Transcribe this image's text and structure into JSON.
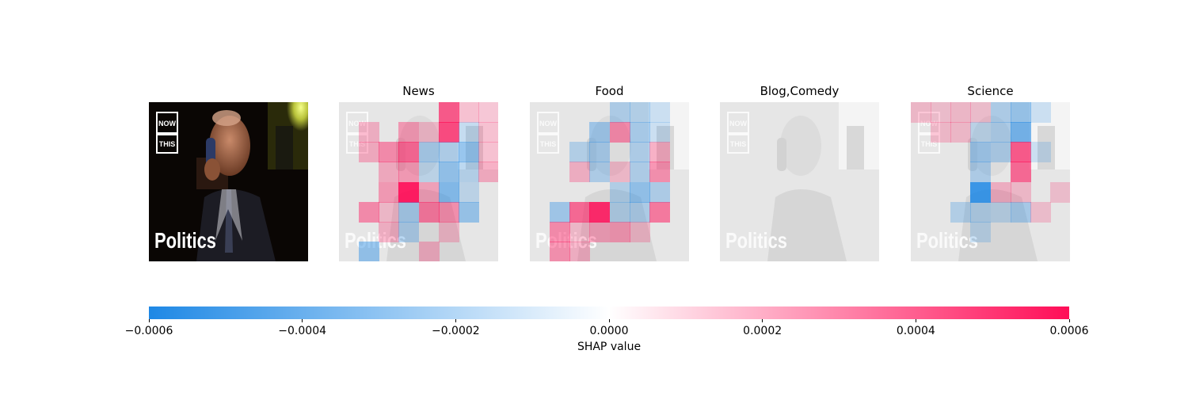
{
  "chart_data": {
    "type": "heatmap",
    "title": "",
    "panels": [
      {
        "title": "",
        "kind": "original-image"
      },
      {
        "title": "News"
      },
      {
        "title": "Food"
      },
      {
        "title": "Blog,Comedy"
      },
      {
        "title": "Science"
      }
    ],
    "image_overlay_text": [
      "NOW",
      "THIS",
      "Politics"
    ],
    "grid": {
      "rows": 8,
      "cols": 8
    },
    "shap_values": {
      "News": [
        [
          0,
          0,
          0,
          0,
          0,
          0.00035,
          5e-05,
          3e-05
        ],
        [
          0,
          8e-05,
          0,
          0.00015,
          5e-05,
          0.0004,
          -5e-05,
          5e-05
        ],
        [
          0,
          0.0001,
          0.0002,
          0.0003,
          -0.00012,
          -0.0001,
          -0.0002,
          5e-05
        ],
        [
          0,
          0,
          0.0001,
          0.00015,
          -5e-05,
          -0.0002,
          -8e-05,
          0.0001
        ],
        [
          0,
          0,
          0.00015,
          0.00055,
          0.00012,
          -0.00025,
          -5e-05,
          0
        ],
        [
          0,
          0.0002,
          5e-05,
          -0.00012,
          0.00025,
          0.00018,
          -0.00018,
          0
        ],
        [
          0,
          0,
          8e-05,
          -0.0001,
          0,
          5e-05,
          0,
          0
        ],
        [
          0,
          -0.0002,
          0,
          0,
          8e-05,
          0,
          0,
          0
        ]
      ],
      "Food": [
        [
          0,
          0,
          0,
          0,
          -0.0001,
          -8e-05,
          -3e-05,
          0
        ],
        [
          0,
          0,
          0,
          -0.00015,
          0.0002,
          -0.00012,
          -3e-05,
          0
        ],
        [
          0,
          0,
          -8e-05,
          -0.00012,
          0,
          -0.0001,
          0.0001,
          0
        ],
        [
          0,
          0,
          8e-05,
          -0.0001,
          5e-05,
          -0.0001,
          0.00018,
          0
        ],
        [
          0,
          0,
          0,
          0,
          -8e-05,
          -0.0002,
          -0.0001,
          0
        ],
        [
          0,
          -0.00015,
          0.0003,
          0.0005,
          -8e-05,
          -0.0001,
          0.00025,
          0
        ],
        [
          0,
          0.0002,
          5e-05,
          0.00012,
          0.00015,
          5e-05,
          0,
          0
        ],
        [
          0,
          0.00018,
          8e-05,
          0,
          0,
          0,
          0,
          0
        ]
      ],
      "Blog,Comedy": [
        [
          0,
          0,
          0,
          0,
          0,
          0,
          0,
          0
        ],
        [
          0,
          0,
          0,
          0,
          0,
          0,
          0,
          0
        ],
        [
          0,
          0,
          0,
          0,
          0,
          0,
          0,
          0
        ],
        [
          0,
          0,
          0,
          0,
          0,
          0,
          0,
          0
        ],
        [
          0,
          0,
          0,
          0,
          0,
          0,
          0,
          0
        ],
        [
          0,
          0,
          0,
          0,
          0,
          0,
          0,
          0
        ],
        [
          0,
          0,
          0,
          0,
          0,
          0,
          0,
          0
        ],
        [
          0,
          0,
          0,
          0,
          0,
          0,
          0,
          0
        ]
      ],
      "Science": [
        [
          5e-05,
          3e-05,
          5e-05,
          3e-05,
          -0.0001,
          -0.00018,
          -3e-05,
          0
        ],
        [
          0,
          5e-05,
          5e-05,
          -5e-05,
          -0.0001,
          -0.0003,
          0,
          0
        ],
        [
          0,
          0,
          0,
          -0.00015,
          -0.0001,
          0.00035,
          -3e-05,
          0
        ],
        [
          0,
          0,
          0,
          -0.0001,
          0,
          0.0003,
          0,
          0
        ],
        [
          0,
          0,
          0,
          -0.0005,
          8e-05,
          5e-05,
          0,
          3e-05
        ],
        [
          0,
          0,
          -8e-05,
          -8e-05,
          -5e-05,
          -0.00012,
          3e-05,
          0
        ],
        [
          0,
          0,
          0,
          -5e-05,
          0,
          0,
          0,
          0
        ],
        [
          0,
          0,
          0,
          0,
          0,
          0,
          0,
          0
        ]
      ]
    },
    "colorbar": {
      "label": "SHAP value",
      "range": [
        -0.0006,
        0.0006
      ],
      "ticks": [
        "−0.0006",
        "−0.0004",
        "−0.0002",
        "0.0000",
        "0.0002",
        "0.0004",
        "0.0006"
      ],
      "tick_values": [
        -0.0006,
        -0.0004,
        -0.0002,
        0,
        0.0002,
        0.0004,
        0.0006
      ],
      "negative_color": "#1e88e5",
      "positive_color": "#ff0d57"
    }
  }
}
